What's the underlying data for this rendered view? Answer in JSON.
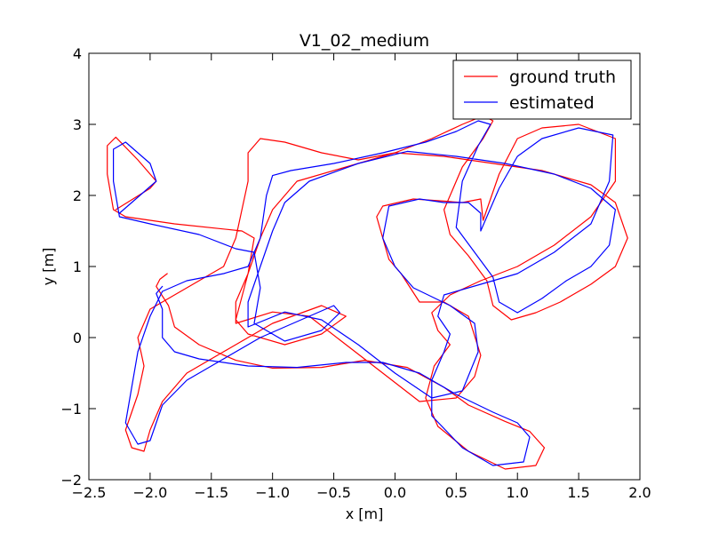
{
  "chart_data": {
    "type": "line",
    "title": "V1_02_medium",
    "xlabel": "x [m]",
    "ylabel": "y [m]",
    "xlim": [
      -2.5,
      2.0
    ],
    "ylim": [
      -2.0,
      4.0
    ],
    "xticks": [
      -2.5,
      -2.0,
      -1.5,
      -1.0,
      -0.5,
      0.0,
      0.5,
      1.0,
      1.5,
      2.0
    ],
    "xtick_labels": [
      "−2.5",
      "−2.0",
      "−1.5",
      "−1.0",
      "−0.5",
      "0.0",
      "0.5",
      "1.0",
      "1.5",
      "2.0"
    ],
    "yticks": [
      -2,
      -1,
      0,
      1,
      2,
      3,
      4
    ],
    "ytick_labels": [
      "−2",
      "−1",
      "0",
      "1",
      "2",
      "3",
      "4"
    ],
    "grid": false,
    "legend_position": "top-right",
    "series": [
      {
        "name": "ground truth",
        "color": "#ff0000",
        "points": [
          [
            -1.86,
            0.9
          ],
          [
            -1.92,
            0.82
          ],
          [
            -1.95,
            0.72
          ],
          [
            -1.85,
            0.45
          ],
          [
            -1.8,
            0.15
          ],
          [
            -1.6,
            -0.1
          ],
          [
            -1.3,
            -0.32
          ],
          [
            -1.0,
            -0.43
          ],
          [
            -0.6,
            -0.42
          ],
          [
            -0.25,
            -0.32
          ],
          [
            0.1,
            -0.42
          ],
          [
            0.4,
            -0.7
          ],
          [
            0.6,
            -0.95
          ],
          [
            0.9,
            -1.18
          ],
          [
            1.1,
            -1.32
          ],
          [
            1.22,
            -1.55
          ],
          [
            1.15,
            -1.8
          ],
          [
            0.9,
            -1.85
          ],
          [
            0.6,
            -1.6
          ],
          [
            0.35,
            -1.25
          ],
          [
            0.25,
            -0.85
          ],
          [
            0.32,
            -0.4
          ],
          [
            0.45,
            -0.1
          ],
          [
            0.35,
            0.1
          ],
          [
            0.3,
            0.35
          ],
          [
            0.45,
            0.6
          ],
          [
            0.7,
            0.8
          ],
          [
            1.0,
            1.0
          ],
          [
            1.3,
            1.3
          ],
          [
            1.6,
            1.7
          ],
          [
            1.8,
            2.2
          ],
          [
            1.8,
            2.8
          ],
          [
            1.5,
            3.0
          ],
          [
            1.2,
            2.95
          ],
          [
            1.0,
            2.8
          ],
          [
            0.85,
            2.3
          ],
          [
            0.72,
            1.65
          ],
          [
            0.7,
            1.95
          ],
          [
            0.55,
            1.9
          ],
          [
            0.4,
            1.92
          ],
          [
            0.15,
            1.95
          ],
          [
            -0.1,
            1.85
          ],
          [
            -0.15,
            1.7
          ],
          [
            -0.05,
            1.1
          ],
          [
            0.05,
            0.9
          ],
          [
            0.2,
            0.5
          ],
          [
            0.4,
            0.5
          ],
          [
            0.6,
            0.3
          ],
          [
            0.7,
            -0.25
          ],
          [
            0.65,
            -0.55
          ],
          [
            0.5,
            -0.85
          ],
          [
            0.2,
            -0.9
          ],
          [
            -0.1,
            -0.5
          ],
          [
            -0.4,
            -0.1
          ],
          [
            -0.7,
            0.3
          ],
          [
            -1.0,
            0.36
          ],
          [
            -1.3,
            0.2
          ],
          [
            -1.3,
            0.5
          ],
          [
            -1.2,
            0.9
          ],
          [
            -1.1,
            1.4
          ],
          [
            -1.0,
            1.8
          ],
          [
            -0.8,
            2.2
          ],
          [
            -0.4,
            2.4
          ],
          [
            0.0,
            2.6
          ],
          [
            0.4,
            2.55
          ],
          [
            0.8,
            2.45
          ],
          [
            1.2,
            2.35
          ],
          [
            1.6,
            2.15
          ],
          [
            1.8,
            1.9
          ],
          [
            1.9,
            1.4
          ],
          [
            1.8,
            1.0
          ],
          [
            1.6,
            0.75
          ],
          [
            1.35,
            0.5
          ],
          [
            1.15,
            0.35
          ],
          [
            0.95,
            0.25
          ],
          [
            0.8,
            0.45
          ],
          [
            0.75,
            0.8
          ],
          [
            0.6,
            1.15
          ],
          [
            0.45,
            1.45
          ],
          [
            0.4,
            1.8
          ],
          [
            0.55,
            2.4
          ],
          [
            0.72,
            2.8
          ],
          [
            0.8,
            3.05
          ],
          [
            0.72,
            3.12
          ],
          [
            0.55,
            3.0
          ],
          [
            0.3,
            2.8
          ],
          [
            0.0,
            2.6
          ],
          [
            -0.3,
            2.5
          ],
          [
            -0.6,
            2.6
          ],
          [
            -0.9,
            2.75
          ],
          [
            -1.1,
            2.8
          ],
          [
            -1.2,
            2.6
          ],
          [
            -1.2,
            2.2
          ],
          [
            -1.25,
            1.8
          ],
          [
            -1.3,
            1.4
          ],
          [
            -1.4,
            1.0
          ],
          [
            -1.6,
            0.8
          ],
          [
            -1.8,
            0.6
          ],
          [
            -2.0,
            0.4
          ],
          [
            -2.1,
            0.0
          ],
          [
            -2.05,
            -0.4
          ],
          [
            -2.1,
            -0.8
          ],
          [
            -2.2,
            -1.3
          ],
          [
            -2.15,
            -1.55
          ],
          [
            -2.05,
            -1.6
          ],
          [
            -2.0,
            -1.3
          ],
          [
            -1.9,
            -0.9
          ],
          [
            -1.7,
            -0.5
          ],
          [
            -1.3,
            -0.1
          ],
          [
            -1.0,
            0.2
          ],
          [
            -0.6,
            0.45
          ],
          [
            -0.4,
            0.3
          ],
          [
            -0.6,
            0.05
          ],
          [
            -0.9,
            -0.1
          ],
          [
            -1.2,
            0.05
          ],
          [
            -1.3,
            0.25
          ],
          [
            -1.2,
            0.9
          ],
          [
            -1.15,
            1.4
          ],
          [
            -1.25,
            1.5
          ],
          [
            -1.8,
            1.6
          ],
          [
            -2.2,
            1.7
          ],
          [
            -2.3,
            1.8
          ],
          [
            -2.35,
            2.3
          ],
          [
            -2.35,
            2.7
          ],
          [
            -2.28,
            2.82
          ],
          [
            -2.1,
            2.5
          ],
          [
            -1.95,
            2.2
          ],
          [
            -2.0,
            2.1
          ],
          [
            -2.28,
            1.8
          ]
        ]
      },
      {
        "name": "estimated",
        "color": "#0000ff",
        "points": [
          [
            -1.9,
            0.72
          ],
          [
            -1.95,
            0.62
          ],
          [
            -1.9,
            0.4
          ],
          [
            -1.9,
            0.0
          ],
          [
            -1.8,
            -0.2
          ],
          [
            -1.6,
            -0.3
          ],
          [
            -1.2,
            -0.4
          ],
          [
            -0.8,
            -0.42
          ],
          [
            -0.4,
            -0.35
          ],
          [
            -0.1,
            -0.35
          ],
          [
            0.2,
            -0.5
          ],
          [
            0.5,
            -0.8
          ],
          [
            0.8,
            -1.05
          ],
          [
            1.0,
            -1.2
          ],
          [
            1.1,
            -1.4
          ],
          [
            1.05,
            -1.75
          ],
          [
            0.8,
            -1.8
          ],
          [
            0.55,
            -1.55
          ],
          [
            0.3,
            -1.1
          ],
          [
            0.3,
            -0.6
          ],
          [
            0.4,
            -0.2
          ],
          [
            0.45,
            0.05
          ],
          [
            0.35,
            0.3
          ],
          [
            0.4,
            0.6
          ],
          [
            0.7,
            0.75
          ],
          [
            1.0,
            0.9
          ],
          [
            1.3,
            1.2
          ],
          [
            1.6,
            1.6
          ],
          [
            1.75,
            2.2
          ],
          [
            1.78,
            2.85
          ],
          [
            1.5,
            2.95
          ],
          [
            1.2,
            2.8
          ],
          [
            1.0,
            2.55
          ],
          [
            0.85,
            2.1
          ],
          [
            0.7,
            1.5
          ],
          [
            0.7,
            1.75
          ],
          [
            0.6,
            1.9
          ],
          [
            0.4,
            1.9
          ],
          [
            0.2,
            1.95
          ],
          [
            -0.05,
            1.85
          ],
          [
            -0.1,
            1.4
          ],
          [
            0.0,
            1.0
          ],
          [
            0.15,
            0.7
          ],
          [
            0.45,
            0.45
          ],
          [
            0.65,
            0.2
          ],
          [
            0.68,
            -0.2
          ],
          [
            0.55,
            -0.75
          ],
          [
            0.3,
            -0.85
          ],
          [
            0.0,
            -0.5
          ],
          [
            -0.3,
            -0.1
          ],
          [
            -0.6,
            0.25
          ],
          [
            -0.9,
            0.36
          ],
          [
            -1.2,
            0.15
          ],
          [
            -1.2,
            0.5
          ],
          [
            -1.1,
            1.0
          ],
          [
            -1.0,
            1.5
          ],
          [
            -0.9,
            1.9
          ],
          [
            -0.7,
            2.2
          ],
          [
            -0.3,
            2.45
          ],
          [
            0.1,
            2.62
          ],
          [
            0.5,
            2.55
          ],
          [
            0.9,
            2.45
          ],
          [
            1.3,
            2.3
          ],
          [
            1.6,
            2.1
          ],
          [
            1.8,
            1.8
          ],
          [
            1.75,
            1.3
          ],
          [
            1.6,
            1.0
          ],
          [
            1.4,
            0.8
          ],
          [
            1.2,
            0.55
          ],
          [
            1.0,
            0.35
          ],
          [
            0.85,
            0.5
          ],
          [
            0.8,
            0.85
          ],
          [
            0.65,
            1.2
          ],
          [
            0.5,
            1.55
          ],
          [
            0.55,
            2.2
          ],
          [
            0.68,
            2.7
          ],
          [
            0.78,
            3.0
          ],
          [
            0.68,
            3.05
          ],
          [
            0.5,
            2.9
          ],
          [
            0.25,
            2.75
          ],
          [
            -0.1,
            2.6
          ],
          [
            -0.5,
            2.45
          ],
          [
            -0.85,
            2.35
          ],
          [
            -1.0,
            2.28
          ],
          [
            -1.05,
            2.0
          ],
          [
            -1.1,
            1.4
          ],
          [
            -1.2,
            1.0
          ],
          [
            -1.4,
            0.9
          ],
          [
            -1.7,
            0.8
          ],
          [
            -1.9,
            0.65
          ],
          [
            -2.0,
            0.3
          ],
          [
            -2.1,
            -0.2
          ],
          [
            -2.15,
            -0.7
          ],
          [
            -2.2,
            -1.2
          ],
          [
            -2.1,
            -1.5
          ],
          [
            -2.0,
            -1.45
          ],
          [
            -1.9,
            -0.95
          ],
          [
            -1.7,
            -0.6
          ],
          [
            -1.4,
            -0.3
          ],
          [
            -1.1,
            0.0
          ],
          [
            -0.7,
            0.3
          ],
          [
            -0.5,
            0.45
          ],
          [
            -0.45,
            0.35
          ],
          [
            -0.6,
            0.1
          ],
          [
            -0.9,
            -0.05
          ],
          [
            -1.15,
            0.2
          ],
          [
            -1.1,
            0.7
          ],
          [
            -1.15,
            1.2
          ],
          [
            -1.3,
            1.25
          ],
          [
            -1.6,
            1.45
          ],
          [
            -2.0,
            1.6
          ],
          [
            -2.25,
            1.7
          ],
          [
            -2.3,
            2.2
          ],
          [
            -2.3,
            2.65
          ],
          [
            -2.2,
            2.75
          ],
          [
            -2.0,
            2.45
          ],
          [
            -1.95,
            2.2
          ],
          [
            -2.05,
            2.05
          ],
          [
            -2.25,
            1.75
          ]
        ]
      }
    ]
  }
}
